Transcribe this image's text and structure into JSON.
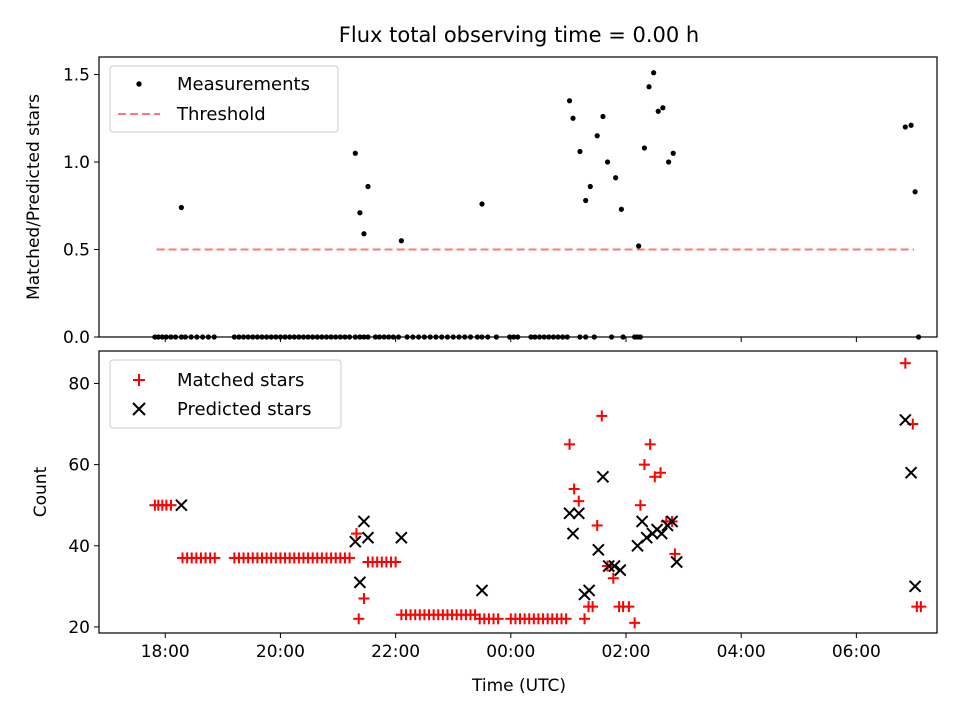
{
  "figure_title": "Flux total observing time = 0.00 h",
  "x_ticks": [
    "18:00",
    "20:00",
    "22:00",
    "00:00",
    "02:00",
    "04:00",
    "06:00"
  ],
  "x_tick_hours": [
    18,
    20,
    22,
    24,
    26,
    28,
    30
  ],
  "xlabel": "Time (UTC)",
  "xlim": [
    16.85,
    31.4
  ],
  "colors": {
    "measure": "#000000",
    "threshold": "#ff7777",
    "matched": "#ff0000",
    "predicted": "#000000"
  },
  "chart_data": [
    {
      "type": "scatter",
      "ylabel": "Matched/Predicted stars",
      "ylim": [
        0,
        1.6
      ],
      "y_ticks": [
        0.0,
        0.5,
        1.0,
        1.5
      ],
      "y_tick_labels": [
        "0.0",
        "0.5",
        "1.0",
        "1.5"
      ],
      "legend": {
        "position": "top-left",
        "entries": [
          "Measurements",
          "Threshold"
        ]
      },
      "threshold": {
        "name": "Threshold",
        "value": 0.5,
        "x": [
          17.85,
          31.0
        ]
      },
      "series": [
        {
          "name": "Measurements",
          "x": [
            17.82,
            17.88,
            17.95,
            18.02,
            18.1,
            18.18,
            18.28,
            18.35,
            18.45,
            18.55,
            18.65,
            18.75,
            18.85,
            19.2,
            19.28,
            19.36,
            19.44,
            19.52,
            19.6,
            19.68,
            19.76,
            19.84,
            19.92,
            20.0,
            20.08,
            20.16,
            20.24,
            20.32,
            20.4,
            20.48,
            20.56,
            20.64,
            20.72,
            20.8,
            20.88,
            20.96,
            21.04,
            21.12,
            21.2,
            21.3,
            21.38,
            21.45,
            21.52,
            21.65,
            21.72,
            21.8,
            21.88,
            21.96,
            22.05,
            22.2,
            22.3,
            22.4,
            22.5,
            22.6,
            22.7,
            22.8,
            22.9,
            23.0,
            23.1,
            23.2,
            23.3,
            23.42,
            23.5,
            23.6,
            23.75,
            23.98,
            24.05,
            24.12,
            24.35,
            24.42,
            24.5,
            24.58,
            24.66,
            24.74,
            24.82,
            24.9,
            24.98,
            25.2,
            25.3,
            25.45,
            25.75,
            25.95,
            26.15,
            26.2,
            26.25,
            18.28,
            21.3,
            21.38,
            21.45,
            21.52,
            22.1,
            23.5,
            25.02,
            25.08,
            25.2,
            25.3,
            25.38,
            25.5,
            25.6,
            25.68,
            25.82,
            25.92,
            26.22,
            26.32,
            26.4,
            26.48,
            26.56,
            26.64,
            26.74,
            26.82,
            30.85,
            30.95,
            31.02,
            31.08
          ],
          "y": [
            0,
            0,
            0,
            0,
            0,
            0,
            0,
            0,
            0,
            0,
            0,
            0,
            0,
            0,
            0,
            0,
            0,
            0,
            0,
            0,
            0,
            0,
            0,
            0,
            0,
            0,
            0,
            0,
            0,
            0,
            0,
            0,
            0,
            0,
            0,
            0,
            0,
            0,
            0,
            0,
            0,
            0,
            0,
            0,
            0,
            0,
            0,
            0,
            0,
            0,
            0,
            0,
            0,
            0,
            0,
            0,
            0,
            0,
            0,
            0,
            0,
            0,
            0,
            0,
            0,
            0,
            0,
            0,
            0,
            0,
            0,
            0,
            0,
            0,
            0,
            0,
            0,
            0,
            0,
            0,
            0,
            0,
            0,
            0,
            0,
            0.74,
            1.05,
            0.71,
            0.59,
            0.86,
            0.55,
            0.76,
            1.35,
            1.25,
            1.06,
            0.78,
            0.86,
            1.15,
            1.26,
            1.0,
            0.91,
            0.73,
            0.52,
            1.08,
            1.43,
            1.51,
            1.29,
            1.31,
            1.0,
            1.05,
            1.2,
            1.21,
            0.83,
            0.0
          ]
        }
      ]
    },
    {
      "type": "scatter",
      "ylabel": "Count",
      "ylim": [
        18.5,
        88
      ],
      "y_ticks": [
        20,
        40,
        60,
        80
      ],
      "y_tick_labels": [
        "20",
        "40",
        "60",
        "80"
      ],
      "legend": {
        "position": "top-left",
        "entries": [
          "Matched stars",
          "Predicted stars"
        ]
      },
      "series": [
        {
          "name": "Matched stars",
          "marker": "plus",
          "x": [
            17.82,
            17.88,
            17.95,
            18.02,
            18.1,
            18.3,
            18.38,
            18.46,
            18.54,
            18.62,
            18.7,
            18.78,
            18.86,
            19.2,
            19.28,
            19.36,
            19.44,
            19.52,
            19.6,
            19.68,
            19.76,
            19.84,
            19.92,
            20.0,
            20.08,
            20.16,
            20.24,
            20.32,
            20.4,
            20.48,
            20.56,
            20.64,
            20.72,
            20.8,
            20.88,
            20.96,
            21.04,
            21.12,
            21.2,
            21.32,
            21.36,
            21.45,
            21.52,
            21.6,
            21.68,
            21.76,
            21.84,
            21.92,
            22.0,
            22.1,
            22.18,
            22.26,
            22.34,
            22.42,
            22.5,
            22.58,
            22.66,
            22.74,
            22.82,
            22.9,
            22.98,
            23.06,
            23.14,
            23.22,
            23.3,
            23.38,
            23.46,
            23.54,
            23.62,
            23.7,
            23.78,
            24.0,
            24.08,
            24.16,
            24.24,
            24.32,
            24.4,
            24.48,
            24.56,
            24.64,
            24.72,
            24.8,
            24.88,
            24.96,
            25.02,
            25.1,
            25.18,
            25.28,
            25.35,
            25.42,
            25.5,
            25.58,
            25.68,
            25.78,
            25.88,
            25.95,
            26.05,
            26.15,
            26.25,
            26.32,
            26.42,
            26.5,
            26.6,
            26.7,
            26.8,
            26.85,
            30.85,
            30.98,
            31.05,
            31.12
          ],
          "y": [
            50,
            50,
            50,
            50,
            50,
            37,
            37,
            37,
            37,
            37,
            37,
            37,
            37,
            37,
            37,
            37,
            37,
            37,
            37,
            37,
            37,
            37,
            37,
            37,
            37,
            37,
            37,
            37,
            37,
            37,
            37,
            37,
            37,
            37,
            37,
            37,
            37,
            37,
            37,
            43,
            22,
            27,
            36,
            36,
            36,
            36,
            36,
            36,
            36,
            23,
            23,
            23,
            23,
            23,
            23,
            23,
            23,
            23,
            23,
            23,
            23,
            23,
            23,
            23,
            23,
            23,
            22,
            22,
            22,
            22,
            22,
            22,
            22,
            22,
            22,
            22,
            22,
            22,
            22,
            22,
            22,
            22,
            22,
            22,
            65,
            54,
            51,
            22,
            25,
            25,
            45,
            72,
            35,
            32,
            25,
            25,
            25,
            21,
            50,
            60,
            65,
            57,
            58,
            46,
            46,
            38,
            85,
            70,
            25,
            25
          ]
        },
        {
          "name": "Predicted stars",
          "marker": "x",
          "x": [
            18.28,
            21.3,
            21.38,
            21.45,
            21.52,
            22.1,
            23.5,
            25.02,
            25.08,
            25.18,
            25.28,
            25.36,
            25.52,
            25.6,
            25.7,
            25.8,
            25.9,
            26.2,
            26.28,
            26.36,
            26.46,
            26.54,
            26.62,
            26.72,
            26.8,
            26.88,
            30.85,
            30.95,
            31.02
          ],
          "y": [
            50,
            41,
            31,
            46,
            42,
            42,
            29,
            48,
            43,
            48,
            28,
            29,
            39,
            57,
            35,
            35,
            34,
            40,
            46,
            42,
            43,
            44,
            43,
            45,
            46,
            36,
            71,
            58,
            30
          ]
        }
      ]
    }
  ]
}
